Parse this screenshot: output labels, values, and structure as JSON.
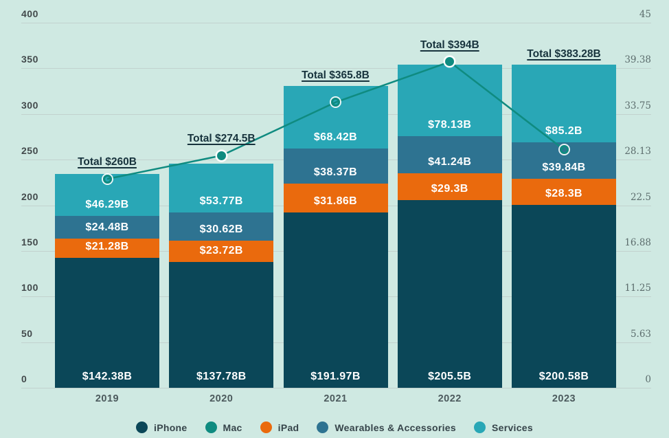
{
  "colors": {
    "background": "#cfe9e2",
    "gridline": "#c2d2ce",
    "total_text": "#17333d",
    "bar_label_text": "#ffffff",
    "left_axis_text": "#42494b",
    "right_axis_text": "#5b6c6c",
    "x_axis_text": "#4c5a5d"
  },
  "chart_data": {
    "type": "bar",
    "stacked": true,
    "title": "",
    "categories": [
      "2019",
      "2020",
      "2021",
      "2022",
      "2023"
    ],
    "series": [
      {
        "name": "iPhone",
        "color": "#0b4758",
        "values": [
          142.38,
          137.78,
          191.97,
          205.5,
          200.58
        ],
        "labels": [
          "$142.38B",
          "$137.78B",
          "$191.97B",
          "$205.5B",
          "$200.58B"
        ]
      },
      {
        "name": "iPad",
        "color": "#ea6a0d",
        "values": [
          21.28,
          23.72,
          31.86,
          29.3,
          28.3
        ],
        "labels": [
          "$21.28B",
          "$23.72B",
          "$31.86B",
          "$29.3B",
          "$28.3B"
        ]
      },
      {
        "name": "Wearables & Accessories",
        "color": "#2e7391",
        "values": [
          24.48,
          30.62,
          38.37,
          41.24,
          39.84
        ],
        "labels": [
          "$24.48B",
          "$30.62B",
          "$38.37B",
          "$41.24B",
          "$39.84B"
        ]
      },
      {
        "name": "Services",
        "color": "#29a7b6",
        "values": [
          46.29,
          53.77,
          68.42,
          78.13,
          85.2
        ],
        "labels": [
          "$46.29B",
          "$53.77B",
          "$68.42B",
          "$78.13B",
          "$85.2B"
        ]
      }
    ],
    "line_series": {
      "name": "Mac",
      "color": "#0f8b80",
      "axis": "right",
      "values": [
        25.74,
        28.62,
        35.19,
        40.18,
        29.36
      ],
      "marker_styles": [
        "hollow",
        "filled",
        "hollow",
        "filled",
        "hollow"
      ]
    },
    "totals": [
      "Total $260B",
      "Total $274.5B",
      "Total $365.8B",
      "Total $394B",
      "Total $383.28B"
    ],
    "left_axis": {
      "min": 0,
      "max": 400,
      "ticks": [
        "0",
        "50",
        "100",
        "150",
        "200",
        "250",
        "300",
        "350",
        "400"
      ]
    },
    "right_axis": {
      "min": 0,
      "max": 45,
      "ticks": [
        "0",
        "5.63",
        "11.25",
        "16.88",
        "22.5",
        "28.13",
        "33.75",
        "39.38",
        "45"
      ]
    },
    "legend": [
      {
        "label": "iPhone",
        "color": "#0b4758"
      },
      {
        "label": "Mac",
        "color": "#0f8b80"
      },
      {
        "label": "iPad",
        "color": "#ea6a0d"
      },
      {
        "label": "Wearables & Accessories",
        "color": "#2e7391"
      },
      {
        "label": "Services",
        "color": "#29a7b6"
      }
    ],
    "grid": true,
    "legend_position": "bottom"
  }
}
